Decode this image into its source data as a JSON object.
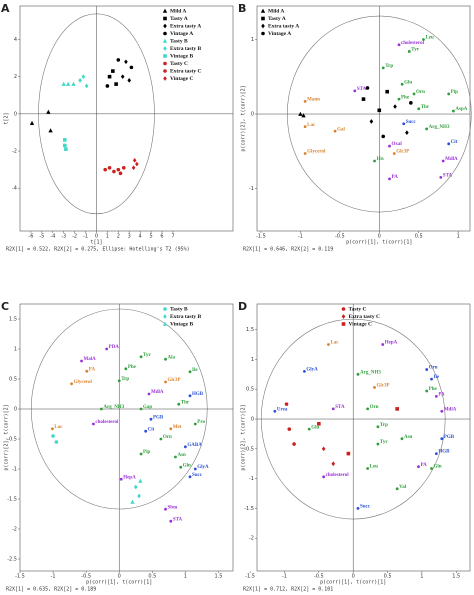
{
  "chart_data": [
    {
      "type": "scatter",
      "panel": "A",
      "xlabel": "t[1]",
      "ylabel": "t[2]",
      "footer": "R2X[1] = 0.522, R2X[2] = 0.275, Ellipse: Hotelling's T2 (95%)",
      "xlim": [
        -7,
        12.5
      ],
      "ylim": [
        -6.3,
        5.8
      ],
      "xticks": [
        -6,
        -5,
        -4,
        -3,
        -2,
        -1,
        0,
        1,
        2,
        3,
        4,
        5,
        6,
        7
      ],
      "yticks": [
        -4,
        -2,
        0,
        2,
        4
      ],
      "legend": "upper right",
      "series": [
        {
          "name": "Mild A",
          "color": "#000000",
          "marker": "triangle",
          "x": [
            -5.9,
            -4.4,
            -4.2
          ],
          "y": [
            -0.5,
            0.1,
            -0.9
          ]
        },
        {
          "name": "Tasty A",
          "color": "#000000",
          "marker": "square",
          "x": [
            1.2,
            1.8,
            1.5
          ],
          "y": [
            2.0,
            1.6,
            2.3
          ]
        },
        {
          "name": "Extra tasty A",
          "color": "#000000",
          "marker": "diamond",
          "x": [
            2.4,
            3.0,
            2.7
          ],
          "y": [
            2.0,
            1.8,
            2.8
          ]
        },
        {
          "name": "Vintage A",
          "color": "#000000",
          "marker": "circle",
          "x": [
            2.0,
            1.0,
            3.2
          ],
          "y": [
            2.9,
            1.5,
            2.5
          ]
        },
        {
          "name": "Tasty B",
          "color": "#3fd9c8",
          "marker": "triangle",
          "x": [
            -3.0,
            -2.6,
            -2.1
          ],
          "y": [
            1.6,
            1.6,
            1.6
          ]
        },
        {
          "name": "Extra tasty B",
          "color": "#3fd9c8",
          "marker": "diamond",
          "x": [
            -1.5,
            -0.9,
            -1.2
          ],
          "y": [
            1.8,
            1.5,
            2.0
          ]
        },
        {
          "name": "Vintage B",
          "color": "#3fd9c8",
          "marker": "square",
          "x": [
            -2.9,
            -2.9,
            -2.8
          ],
          "y": [
            -1.4,
            -1.7,
            -1.9
          ]
        },
        {
          "name": "Tasty C",
          "color": "#cc1f1f",
          "marker": "circle",
          "x": [
            0.8,
            1.2,
            1.6
          ],
          "y": [
            -3.0,
            -2.9,
            -3.1
          ]
        },
        {
          "name": "Extra tasty C",
          "color": "#cc1f1f",
          "marker": "circle",
          "x": [
            2.0,
            2.5,
            2.2
          ],
          "y": [
            -3.0,
            -2.9,
            -3.2
          ]
        },
        {
          "name": "Vintage C",
          "color": "#cc1f1f",
          "marker": "diamond",
          "x": [
            3.5,
            3.7,
            3.4
          ],
          "y": [
            -2.5,
            -2.7,
            -2.9
          ]
        }
      ],
      "loadings": []
    },
    {
      "type": "scatter",
      "panel": "B",
      "xlabel": "p(corr)[1], t(corr)[1]",
      "ylabel": "p(corr)[2], t(corr)[2]",
      "footer": "R2X[1] = 0.646, R2X[2] = 0.119",
      "xlim": [
        -1.55,
        1.15
      ],
      "ylim": [
        -1.57,
        1.45
      ],
      "xticks": [
        -1.5,
        -1,
        -0.5,
        0,
        0.5,
        1
      ],
      "yticks": [
        -1,
        0,
        1
      ],
      "legend": "upper left",
      "series": [
        {
          "name": "Mild A",
          "color": "#000000",
          "marker": "triangle",
          "x": [
            -1.0,
            -0.96
          ],
          "y": [
            0.0,
            -0.02
          ]
        },
        {
          "name": "Tasty A",
          "color": "#000000",
          "marker": "square",
          "x": [
            -0.2,
            0.0,
            0.1
          ],
          "y": [
            0.2,
            0.05,
            0.3
          ]
        },
        {
          "name": "Extra tasty A",
          "color": "#000000",
          "marker": "diamond",
          "x": [
            -0.1,
            0.2,
            0.35
          ],
          "y": [
            -0.1,
            0.1,
            -0.25
          ]
        },
        {
          "name": "Vintage A",
          "color": "#000000",
          "marker": "circle",
          "x": [
            0.05,
            0.4,
            -0.15
          ],
          "y": [
            -0.3,
            0.15,
            0.35
          ]
        }
      ],
      "loadings": [
        {
          "label": "cholesterol",
          "color": "#9b30d9",
          "x": 0.25,
          "y": 0.93
        },
        {
          "label": "Leu",
          "color": "#2e9e3a",
          "x": 0.56,
          "y": 1.0
        },
        {
          "label": "Tyr",
          "color": "#2e9e3a",
          "x": 0.38,
          "y": 0.84
        },
        {
          "label": "Trp",
          "color": "#2e9e3a",
          "x": 0.05,
          "y": 0.62
        },
        {
          "label": "Mann",
          "color": "#d9822b",
          "x": -0.94,
          "y": 0.17
        },
        {
          "label": "Lac",
          "color": "#d9822b",
          "x": -0.94,
          "y": -0.17
        },
        {
          "label": "STA",
          "color": "#9b30d9",
          "x": -0.31,
          "y": 0.31
        },
        {
          "label": "Gal",
          "color": "#d9822b",
          "x": -0.56,
          "y": -0.23
        },
        {
          "label": "Glycerol",
          "color": "#d9822b",
          "x": -0.94,
          "y": -0.53
        },
        {
          "label": "Glu",
          "color": "#2e9e3a",
          "x": 0.29,
          "y": 0.4
        },
        {
          "label": "Orn",
          "color": "#2e9e3a",
          "x": 0.44,
          "y": 0.27
        },
        {
          "label": "Phe",
          "color": "#2e9e3a",
          "x": 0.25,
          "y": 0.2
        },
        {
          "label": "Thr",
          "color": "#2e9e3a",
          "x": 0.5,
          "y": 0.07
        },
        {
          "label": "Pip",
          "color": "#2e9e3a",
          "x": 0.88,
          "y": 0.27
        },
        {
          "label": "AspA",
          "color": "#2e9e3a",
          "x": 0.94,
          "y": 0.04
        },
        {
          "label": "Arg_NH3",
          "color": "#2e9e3a",
          "x": 0.6,
          "y": -0.2
        },
        {
          "label": "Succ",
          "color": "#2a4fd6",
          "x": 0.31,
          "y": -0.13
        },
        {
          "label": "Cit",
          "color": "#2a4fd6",
          "x": 0.88,
          "y": -0.4
        },
        {
          "label": "Oxal",
          "color": "#9b30d9",
          "x": 0.13,
          "y": -0.43
        },
        {
          "label": "Glc3P",
          "color": "#d9822b",
          "x": 0.19,
          "y": -0.53
        },
        {
          "label": "MdlA",
          "color": "#9b30d9",
          "x": 0.81,
          "y": -0.63
        },
        {
          "label": "His",
          "color": "#2e9e3a",
          "x": -0.06,
          "y": -0.63
        },
        {
          "label": "PA",
          "color": "#9b30d9",
          "x": 0.13,
          "y": -0.87
        },
        {
          "label": "STA",
          "color": "#9b30d9",
          "x": 0.78,
          "y": -0.85
        }
      ]
    },
    {
      "type": "scatter",
      "panel": "C",
      "xlabel": "p(corr)[1], t(corr)[1]",
      "ylabel": "p(corr)[2], t(corr)[2]",
      "footer": "R2X[1] = 0.635, R2X[2] = 0.189",
      "xlim": [
        -1.5,
        1.72
      ],
      "ylim": [
        -2.7,
        1.75
      ],
      "xticks": [
        -1.5,
        -1,
        -0.5,
        0,
        0.5,
        1,
        1.5
      ],
      "yticks": [
        -2.5,
        -2,
        -1.5,
        -1,
        -0.5,
        0,
        0.5,
        1,
        1.5
      ],
      "legend": "upper right",
      "series": [
        {
          "name": "Tasty B",
          "color": "#3fd9c8",
          "marker": "circle",
          "x": [
            -1.0,
            -0.95
          ],
          "y": [
            -0.45,
            -0.55
          ]
        },
        {
          "name": "Extra tasty B",
          "color": "#3fd9c8",
          "marker": "diamond",
          "x": [
            0.25,
            0.3
          ],
          "y": [
            -1.3,
            -1.45
          ]
        },
        {
          "name": "Vintage B",
          "color": "#3fd9c8",
          "marker": "triangle",
          "x": [
            0.2,
            0.32
          ],
          "y": [
            -1.55,
            -1.2
          ]
        }
      ],
      "loadings": [
        {
          "label": "PDA",
          "color": "#9b30d9",
          "x": -0.19,
          "y": 1.0
        },
        {
          "label": "MalA",
          "color": "#9b30d9",
          "x": -0.57,
          "y": 0.8
        },
        {
          "label": "PA",
          "color": "#d9822b",
          "x": -0.49,
          "y": 0.63
        },
        {
          "label": "Glycerol",
          "color": "#d9822b",
          "x": -0.72,
          "y": 0.42
        },
        {
          "label": "Lac",
          "color": "#d9822b",
          "x": -1.01,
          "y": -0.33
        },
        {
          "label": "Tyr",
          "color": "#2e9e3a",
          "x": 0.33,
          "y": 0.87
        },
        {
          "label": "Ala",
          "color": "#2e9e3a",
          "x": 0.7,
          "y": 0.83
        },
        {
          "label": "Phe",
          "color": "#2e9e3a",
          "x": 0.1,
          "y": 0.67
        },
        {
          "label": "Trp",
          "color": "#2e9e3a",
          "x": 0.0,
          "y": 0.47
        },
        {
          "label": "Glc3P",
          "color": "#d9822b",
          "x": 0.7,
          "y": 0.45
        },
        {
          "label": "Ile",
          "color": "#2e9e3a",
          "x": 1.07,
          "y": 0.62
        },
        {
          "label": "MdlA",
          "color": "#9b30d9",
          "x": 0.45,
          "y": 0.25
        },
        {
          "label": "Thr",
          "color": "#2e9e3a",
          "x": 0.9,
          "y": 0.08
        },
        {
          "label": "HGB",
          "color": "#2a4fd6",
          "x": 1.07,
          "y": 0.22
        },
        {
          "label": "Arg_NH3",
          "color": "#2e9e3a",
          "x": -0.27,
          "y": 0.0
        },
        {
          "label": "Gap",
          "color": "#2e9e3a",
          "x": 0.33,
          "y": 0.0
        },
        {
          "label": "PGB",
          "color": "#2a4fd6",
          "x": 0.48,
          "y": -0.17
        },
        {
          "label": "cholesterol",
          "color": "#9b30d9",
          "x": -0.39,
          "y": -0.25
        },
        {
          "label": "Cit",
          "color": "#2a4fd6",
          "x": 0.4,
          "y": -0.37
        },
        {
          "label": "Met",
          "color": "#d9822b",
          "x": 0.78,
          "y": -0.33
        },
        {
          "label": "Pro",
          "color": "#2e9e3a",
          "x": 1.15,
          "y": -0.25
        },
        {
          "label": "Orn",
          "color": "#2e9e3a",
          "x": 0.63,
          "y": -0.5
        },
        {
          "label": "Pip",
          "color": "#2e9e3a",
          "x": 0.33,
          "y": -0.75
        },
        {
          "label": "GABA",
          "color": "#2a4fd6",
          "x": 1.0,
          "y": -0.63
        },
        {
          "label": "Asn",
          "color": "#2e9e3a",
          "x": 0.85,
          "y": -0.8
        },
        {
          "label": "Gln",
          "color": "#2e9e3a",
          "x": 0.93,
          "y": -0.97
        },
        {
          "label": "GlyA",
          "color": "#2a4fd6",
          "x": 1.15,
          "y": -1.0
        },
        {
          "label": "Succ",
          "color": "#2a4fd6",
          "x": 1.07,
          "y": -1.13
        },
        {
          "label": "HepA",
          "color": "#9b30d9",
          "x": 0.03,
          "y": -1.17
        },
        {
          "label": "Sbm",
          "color": "#9b30d9",
          "x": 0.7,
          "y": -1.67
        },
        {
          "label": "STA",
          "color": "#9b30d9",
          "x": 0.78,
          "y": -1.87
        }
      ]
    },
    {
      "type": "scatter",
      "panel": "D",
      "xlabel": "p(corr)[1], t(corr)[1]",
      "ylabel": "p(corr)[2], t(corr)[2]",
      "footer": "R2X[1] = 0.712, R2X[2] = 0.101",
      "xlim": [
        -1.4,
        1.7
      ],
      "ylim": [
        -2.55,
        1.93
      ],
      "xticks": [
        -1.5,
        -1,
        -0.5,
        0,
        0.5,
        1,
        1.5
      ],
      "yticks": [
        -2,
        -1.5,
        -1,
        -0.5,
        0,
        0.5,
        1,
        1.5
      ],
      "legend": "upper center",
      "series": [
        {
          "name": "Tasty C",
          "color": "#cc1f1f",
          "marker": "circle",
          "x": [
            -0.97,
            -0.93,
            -0.86
          ],
          "y": [
            0.25,
            -0.17,
            -0.42
          ]
        },
        {
          "name": "Extra tasty C",
          "color": "#cc1f1f",
          "marker": "diamond",
          "x": [
            -0.43,
            -0.29
          ],
          "y": [
            -0.5,
            -0.75
          ]
        },
        {
          "name": "Vintage C",
          "color": "#cc1f1f",
          "marker": "square",
          "x": [
            -0.5,
            -0.07,
            0.64
          ],
          "y": [
            -0.08,
            -0.58,
            0.17
          ]
        }
      ],
      "loadings": [
        {
          "label": "Lac",
          "color": "#d9822b",
          "x": -0.36,
          "y": 1.25
        },
        {
          "label": "HepA",
          "color": "#9b30d9",
          "x": 0.43,
          "y": 1.25
        },
        {
          "label": "GlyA",
          "color": "#2a4fd6",
          "x": -0.71,
          "y": 0.8
        },
        {
          "label": "Arg_NH3",
          "color": "#2e9e3a",
          "x": 0.07,
          "y": 0.75
        },
        {
          "label": "Orn",
          "color": "#2a4fd6",
          "x": 1.07,
          "y": 0.83
        },
        {
          "label": "Glc3P",
          "color": "#d9822b",
          "x": 0.31,
          "y": 0.53
        },
        {
          "label": "Ile",
          "color": "#2a4fd6",
          "x": 1.14,
          "y": 0.67
        },
        {
          "label": "Phe",
          "color": "#2e9e3a",
          "x": 1.07,
          "y": 0.47
        },
        {
          "label": "PA",
          "color": "#9b30d9",
          "x": 1.21,
          "y": 0.38
        },
        {
          "label": "MdlA",
          "color": "#9b30d9",
          "x": 1.29,
          "y": 0.13
        },
        {
          "label": "STA",
          "color": "#9b30d9",
          "x": -0.29,
          "y": 0.17
        },
        {
          "label": "Orn",
          "color": "#2e9e3a",
          "x": 0.21,
          "y": 0.17
        },
        {
          "label": "Urea",
          "color": "#2a4fd6",
          "x": -1.14,
          "y": 0.13
        },
        {
          "label": "Glu",
          "color": "#2e9e3a",
          "x": -0.64,
          "y": -0.17
        },
        {
          "label": "Trp",
          "color": "#2e9e3a",
          "x": 0.36,
          "y": -0.13
        },
        {
          "label": "Asn",
          "color": "#2e9e3a",
          "x": 0.71,
          "y": -0.33
        },
        {
          "label": "Tyr",
          "color": "#2e9e3a",
          "x": 0.36,
          "y": -0.42
        },
        {
          "label": "PGB",
          "color": "#2a4fd6",
          "x": 1.29,
          "y": -0.33
        },
        {
          "label": "HGB",
          "color": "#2a4fd6",
          "x": 1.21,
          "y": -0.58
        },
        {
          "label": "Gln",
          "color": "#2e9e3a",
          "x": 1.14,
          "y": -0.83
        },
        {
          "label": "PA",
          "color": "#9b30d9",
          "x": 0.95,
          "y": -0.8
        },
        {
          "label": "cholesterol",
          "color": "#9b30d9",
          "x": -0.43,
          "y": -0.97
        },
        {
          "label": "Leu",
          "color": "#2e9e3a",
          "x": 0.21,
          "y": -0.83
        },
        {
          "label": "Val",
          "color": "#2e9e3a",
          "x": 0.64,
          "y": -1.17
        },
        {
          "label": "Succ",
          "color": "#2a4fd6",
          "x": 0.07,
          "y": -1.5
        }
      ]
    }
  ]
}
